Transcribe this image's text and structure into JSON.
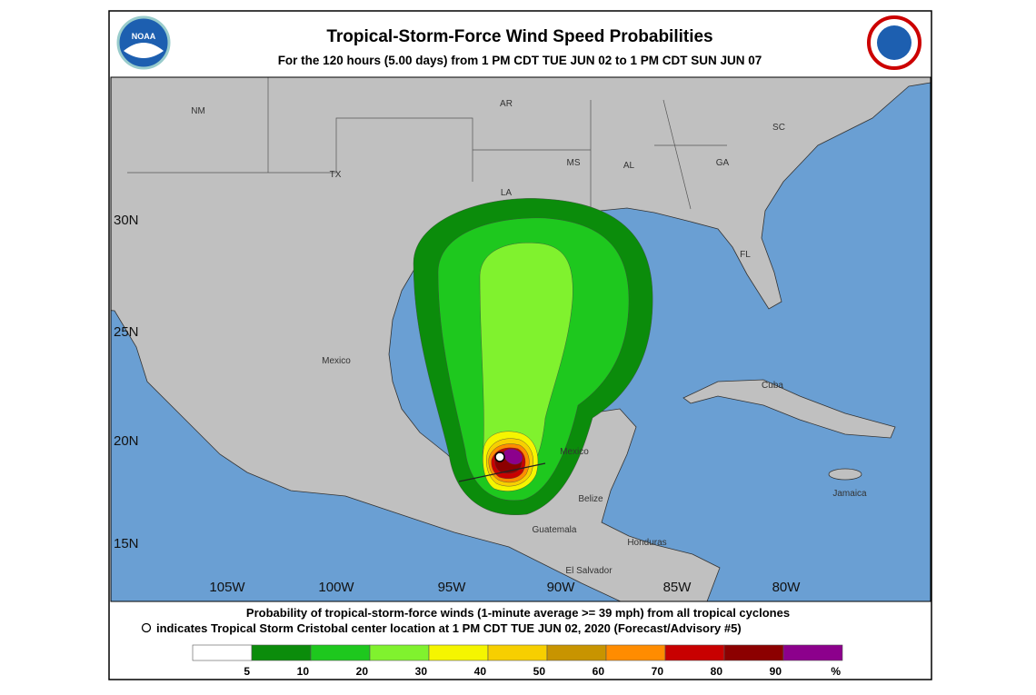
{
  "header": {
    "title": "Tropical-Storm-Force Wind Speed Probabilities",
    "subtitle": "For the 120 hours (5.00 days) from 1 PM CDT TUE JUN 02 to 1 PM CDT SUN JUN 07",
    "logo_left": "NOAA"
  },
  "map": {
    "latitude_labels": [
      "30N",
      "25N",
      "20N",
      "15N"
    ],
    "longitude_labels": [
      "105W",
      "100W",
      "95W",
      "90W",
      "85W",
      "80W"
    ],
    "place_labels": [
      "NM",
      "AR",
      "SC",
      "TX",
      "MS",
      "AL",
      "GA",
      "LA",
      "FL",
      "Mexico",
      "Cuba",
      "Mexico",
      "Belize",
      "Jamaica",
      "Guatemala",
      "Honduras",
      "El Salvador"
    ]
  },
  "footer": {
    "line1": "Probability of tropical-storm-force winds (1-minute average >= 39 mph) from all tropical cyclones",
    "line2": "indicates Tropical Storm Cristobal center location at 1 PM CDT TUE JUN 02, 2020 (Forecast/Advisory #5)"
  },
  "legend": {
    "colors": [
      "#ffffff",
      "#0b8c0b",
      "#1ec81e",
      "#80f22e",
      "#f5f500",
      "#f7cf00",
      "#c89400",
      "#ff8c00",
      "#c80000",
      "#8c0000",
      "#8c008c"
    ],
    "labels": [
      "5",
      "10",
      "20",
      "30",
      "40",
      "50",
      "60",
      "70",
      "80",
      "90",
      "%"
    ]
  }
}
